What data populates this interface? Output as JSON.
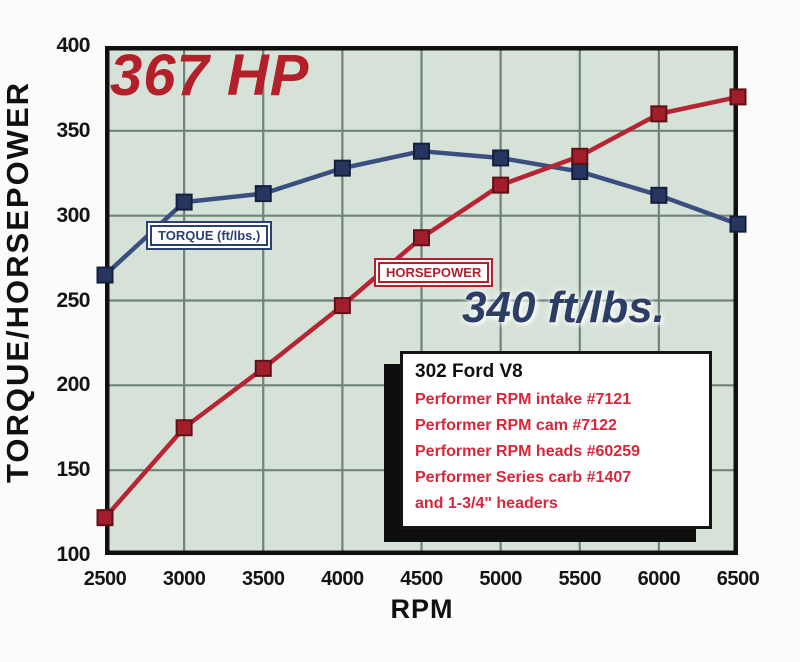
{
  "chart_data": {
    "type": "line",
    "xlabel": "RPM",
    "ylabel": "TORQUE/HORSEPOWER",
    "xlim": [
      2500,
      6500
    ],
    "ylim": [
      100,
      400
    ],
    "x_ticks": [
      2500,
      3000,
      3500,
      4000,
      4500,
      5000,
      5500,
      6000,
      6500
    ],
    "y_ticks": [
      400,
      350,
      300,
      250,
      200,
      150,
      100
    ],
    "grid": true,
    "legend_position": "inline-callout-boxes",
    "categories": [
      2500,
      3000,
      3500,
      4000,
      4500,
      5000,
      5500,
      6000,
      6500
    ],
    "series": [
      {
        "name": "TORQUE (ft/lbs.)",
        "values": [
          265,
          308,
          313,
          328,
          338,
          334,
          326,
          312,
          295
        ],
        "line_color": "#3a4e80",
        "marker": "square",
        "marker_fill": "#26365f",
        "marker_stroke": "#151f3d"
      },
      {
        "name": "HORSEPOWER",
        "values": [
          122,
          175,
          210,
          247,
          287,
          318,
          335,
          360,
          370
        ],
        "line_color": "#b72434",
        "marker": "square",
        "marker_fill": "#a31e2b",
        "marker_stroke": "#5f1019"
      }
    ],
    "annotations": [
      {
        "text": "367 HP",
        "color": "#b4202a",
        "position": "top-left"
      },
      {
        "text": "340 ft/lbs.",
        "color": "#2d3e66",
        "position": "mid-right"
      }
    ]
  },
  "info_box": {
    "title": "302 Ford V8",
    "lines": [
      "Performer RPM intake #7121",
      "Performer RPM cam #7122",
      "Performer RPM heads #60259",
      "Performer Series carb #1407",
      "and 1-3/4\" headers"
    ]
  },
  "colors": {
    "page_bg": "#fbfbf9",
    "plot_bg": "#d6e2d8",
    "grid": "#6f8379",
    "axis_border": "#101010",
    "torque_blue": "#2c4173",
    "horsepower_red": "#b3202d",
    "info_text_red": "#d8263a"
  }
}
